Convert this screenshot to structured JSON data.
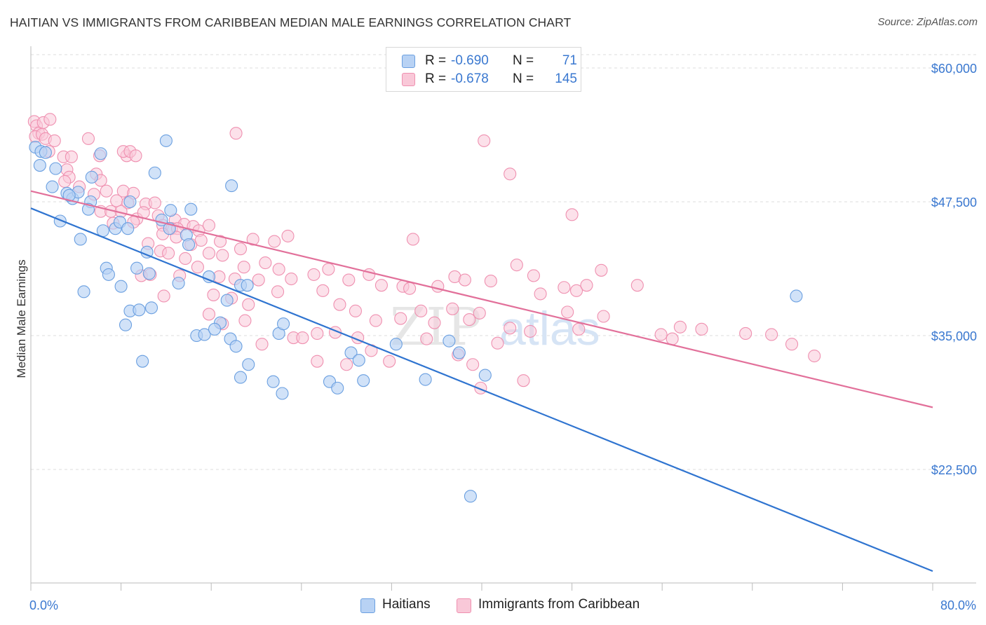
{
  "title": "HAITIAN VS IMMIGRANTS FROM CARIBBEAN MEDIAN MALE EARNINGS CORRELATION CHART",
  "source": "Source: ZipAtlas.com",
  "watermark": {
    "zip": "ZIP",
    "atlas": "atlas"
  },
  "legend": {
    "haitians": {
      "r_label": "R =",
      "r_value": "-0.690",
      "n_label": "N =",
      "n_value": "71"
    },
    "caribbean": {
      "r_label": "R =",
      "r_value": "-0.678",
      "n_label": "N =",
      "n_value": "145"
    }
  },
  "colors": {
    "haitians_fill": "#b8d2f4",
    "haitians_stroke": "#6a9fe0",
    "haitians_line": "#2f74d0",
    "caribbean_fill": "#f9c8d8",
    "caribbean_stroke": "#ef90b0",
    "caribbean_line": "#e2709a",
    "axis_label": "#3a78d0",
    "grid": "#dddddd"
  },
  "chart_data": {
    "type": "scatter",
    "title": "HAITIAN VS IMMIGRANTS FROM CARIBBEAN MEDIAN MALE EARNINGS CORRELATION CHART",
    "xlabel": "",
    "ylabel": "Median Male Earnings",
    "xlim": [
      0,
      80
    ],
    "ylim": [
      12500,
      62000
    ],
    "x_tick_labels": [
      "0.0%",
      "80.0%"
    ],
    "y_ticks": [
      22500,
      35000,
      47500,
      60000
    ],
    "y_tick_labels": [
      "$22,500",
      "$35,000",
      "$47,500",
      "$60,000"
    ],
    "grid": true,
    "legend_position": "top-center",
    "series": [
      {
        "name": "Haitians",
        "trend": {
          "x": [
            0,
            80
          ],
          "y": [
            46900,
            13000
          ]
        },
        "points": [
          [
            0.4,
            52600
          ],
          [
            0.9,
            52200
          ],
          [
            1.3,
            52100
          ],
          [
            0.8,
            50900
          ],
          [
            2.2,
            50600
          ],
          [
            1.9,
            48900
          ],
          [
            3.2,
            48300
          ],
          [
            3.7,
            47800
          ],
          [
            4.2,
            48400
          ],
          [
            5.3,
            47500
          ],
          [
            5.4,
            49800
          ],
          [
            6.2,
            52000
          ],
          [
            8.8,
            47500
          ],
          [
            2.6,
            45700
          ],
          [
            4.4,
            44000
          ],
          [
            6.4,
            44800
          ],
          [
            7.5,
            45000
          ],
          [
            7.9,
            45600
          ],
          [
            8.6,
            45000
          ],
          [
            11.6,
            45800
          ],
          [
            12.3,
            45000
          ],
          [
            12.4,
            46700
          ],
          [
            14.2,
            46800
          ],
          [
            11.0,
            50200
          ],
          [
            12.0,
            53200
          ],
          [
            17.8,
            49000
          ],
          [
            13.8,
            44400
          ],
          [
            14.0,
            43500
          ],
          [
            10.3,
            42800
          ],
          [
            6.7,
            41300
          ],
          [
            6.9,
            40700
          ],
          [
            9.4,
            41300
          ],
          [
            10.5,
            40800
          ],
          [
            8.0,
            39600
          ],
          [
            4.7,
            39100
          ],
          [
            13.1,
            39900
          ],
          [
            15.8,
            40500
          ],
          [
            18.6,
            39700
          ],
          [
            19.2,
            39700
          ],
          [
            17.4,
            38300
          ],
          [
            8.8,
            37300
          ],
          [
            10.7,
            37600
          ],
          [
            9.6,
            37400
          ],
          [
            8.4,
            36000
          ],
          [
            16.8,
            36200
          ],
          [
            14.7,
            35000
          ],
          [
            15.4,
            35100
          ],
          [
            16.3,
            35600
          ],
          [
            17.7,
            34700
          ],
          [
            18.2,
            34000
          ],
          [
            22.0,
            35200
          ],
          [
            22.4,
            36100
          ],
          [
            9.9,
            32600
          ],
          [
            19.3,
            32300
          ],
          [
            18.6,
            31100
          ],
          [
            21.5,
            30700
          ],
          [
            22.3,
            29600
          ],
          [
            26.5,
            30700
          ],
          [
            27.2,
            30100
          ],
          [
            28.4,
            33400
          ],
          [
            29.1,
            32700
          ],
          [
            29.5,
            30800
          ],
          [
            32.4,
            34200
          ],
          [
            35.0,
            30900
          ],
          [
            37.1,
            34500
          ],
          [
            38.0,
            33400
          ],
          [
            40.3,
            31300
          ],
          [
            39.0,
            20000
          ],
          [
            67.9,
            38700
          ],
          [
            5.1,
            46800
          ],
          [
            3.4,
            48100
          ]
        ]
      },
      {
        "name": "Immigrants from Caribbean",
        "trend": {
          "x": [
            0,
            80
          ],
          "y": [
            48500,
            28300
          ]
        },
        "points": [
          [
            0.3,
            55000
          ],
          [
            0.5,
            54600
          ],
          [
            0.7,
            53900
          ],
          [
            1.1,
            54900
          ],
          [
            1.7,
            55200
          ],
          [
            0.4,
            53600
          ],
          [
            1.0,
            53800
          ],
          [
            1.3,
            53400
          ],
          [
            2.1,
            53200
          ],
          [
            1.6,
            52200
          ],
          [
            2.9,
            51700
          ],
          [
            3.6,
            51700
          ],
          [
            5.1,
            53400
          ],
          [
            6.1,
            51800
          ],
          [
            8.5,
            51800
          ],
          [
            8.2,
            52200
          ],
          [
            8.8,
            52200
          ],
          [
            9.3,
            51800
          ],
          [
            3.2,
            50500
          ],
          [
            3.4,
            49800
          ],
          [
            5.8,
            50100
          ],
          [
            6.2,
            49500
          ],
          [
            3.0,
            49400
          ],
          [
            4.3,
            48900
          ],
          [
            5.6,
            48200
          ],
          [
            6.7,
            48500
          ],
          [
            8.2,
            48500
          ],
          [
            9.1,
            48300
          ],
          [
            7.6,
            47600
          ],
          [
            8.6,
            47400
          ],
          [
            10.2,
            47300
          ],
          [
            11.0,
            47400
          ],
          [
            6.2,
            46600
          ],
          [
            7.1,
            46600
          ],
          [
            8.0,
            46600
          ],
          [
            9.4,
            45900
          ],
          [
            10.0,
            46500
          ],
          [
            11.3,
            46200
          ],
          [
            12.8,
            45800
          ],
          [
            13.6,
            45400
          ],
          [
            11.7,
            45300
          ],
          [
            12.5,
            45000
          ],
          [
            13.0,
            45000
          ],
          [
            14.4,
            45200
          ],
          [
            14.9,
            44800
          ],
          [
            15.8,
            45300
          ],
          [
            7.3,
            45500
          ],
          [
            9.1,
            45600
          ],
          [
            11.7,
            44500
          ],
          [
            12.9,
            44200
          ],
          [
            14.2,
            43500
          ],
          [
            15.1,
            43900
          ],
          [
            16.8,
            43800
          ],
          [
            18.6,
            43100
          ],
          [
            19.7,
            44000
          ],
          [
            21.6,
            43800
          ],
          [
            22.8,
            44300
          ],
          [
            10.4,
            43600
          ],
          [
            11.5,
            42900
          ],
          [
            12.2,
            42700
          ],
          [
            13.7,
            42200
          ],
          [
            15.8,
            42700
          ],
          [
            17.0,
            42500
          ],
          [
            20.8,
            41800
          ],
          [
            18.9,
            41400
          ],
          [
            22.0,
            41200
          ],
          [
            9.8,
            40600
          ],
          [
            10.6,
            40700
          ],
          [
            13.2,
            40600
          ],
          [
            14.8,
            41400
          ],
          [
            16.7,
            40500
          ],
          [
            18.1,
            40300
          ],
          [
            20.2,
            40200
          ],
          [
            23.1,
            40300
          ],
          [
            25.1,
            40700
          ],
          [
            26.4,
            41200
          ],
          [
            28.2,
            40200
          ],
          [
            30.0,
            40700
          ],
          [
            31.1,
            39700
          ],
          [
            33.0,
            39600
          ],
          [
            33.6,
            39400
          ],
          [
            36.1,
            39600
          ],
          [
            37.6,
            40500
          ],
          [
            38.5,
            40200
          ],
          [
            40.8,
            40100
          ],
          [
            43.1,
            41600
          ],
          [
            44.6,
            40600
          ],
          [
            45.2,
            38900
          ],
          [
            47.3,
            39500
          ],
          [
            48.4,
            39200
          ],
          [
            49.3,
            39700
          ],
          [
            50.6,
            41100
          ],
          [
            53.8,
            39700
          ],
          [
            16.2,
            38800
          ],
          [
            17.8,
            38500
          ],
          [
            19.3,
            37900
          ],
          [
            21.9,
            39100
          ],
          [
            25.9,
            39200
          ],
          [
            27.4,
            37900
          ],
          [
            28.8,
            37300
          ],
          [
            30.6,
            36400
          ],
          [
            32.8,
            36600
          ],
          [
            34.6,
            37300
          ],
          [
            35.8,
            36200
          ],
          [
            37.4,
            37500
          ],
          [
            38.9,
            36500
          ],
          [
            39.8,
            37100
          ],
          [
            42.5,
            35700
          ],
          [
            44.3,
            35400
          ],
          [
            47.6,
            37200
          ],
          [
            48.6,
            35600
          ],
          [
            50.8,
            36800
          ],
          [
            55.9,
            35100
          ],
          [
            56.9,
            34700
          ],
          [
            57.6,
            35800
          ],
          [
            59.5,
            35600
          ],
          [
            63.4,
            35200
          ],
          [
            65.7,
            35100
          ],
          [
            67.5,
            34200
          ],
          [
            69.5,
            33100
          ],
          [
            15.8,
            37000
          ],
          [
            17.0,
            36100
          ],
          [
            19.0,
            36400
          ],
          [
            20.5,
            34200
          ],
          [
            23.3,
            34800
          ],
          [
            24.1,
            34800
          ],
          [
            25.4,
            35200
          ],
          [
            27.0,
            35300
          ],
          [
            29.0,
            34800
          ],
          [
            30.2,
            33600
          ],
          [
            31.8,
            32600
          ],
          [
            35.1,
            34700
          ],
          [
            37.9,
            33200
          ],
          [
            39.2,
            32300
          ],
          [
            41.4,
            34300
          ],
          [
            43.7,
            30800
          ],
          [
            39.9,
            30100
          ],
          [
            25.4,
            32600
          ],
          [
            28.0,
            32300
          ],
          [
            18.2,
            53900
          ],
          [
            40.2,
            53200
          ],
          [
            42.5,
            50100
          ],
          [
            48.0,
            46300
          ],
          [
            33.9,
            44000
          ],
          [
            11.8,
            38700
          ]
        ]
      }
    ]
  },
  "axis": {
    "x_left": "0.0%",
    "x_right": "80.0%",
    "ylabel": "Median Male Earnings"
  },
  "bottom_legend": {
    "haitians": "Haitians",
    "caribbean": "Immigrants from Caribbean"
  }
}
